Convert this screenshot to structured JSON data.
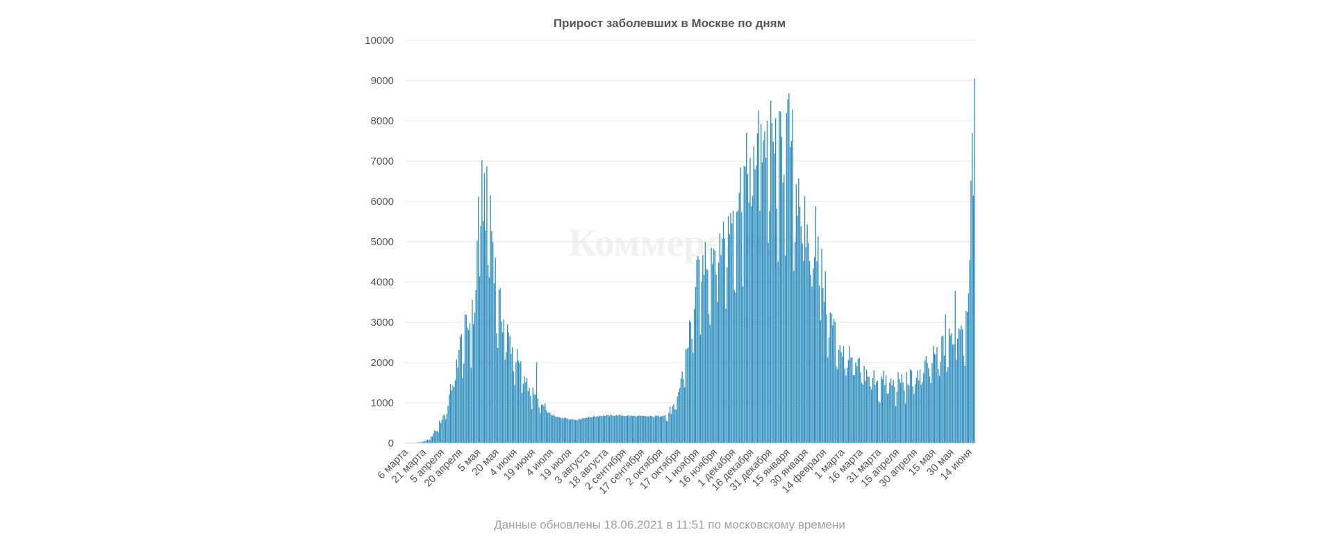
{
  "chart_data": {
    "type": "bar",
    "title": "Прирост заболевших в Москве по дням",
    "watermark": "Коммерсантъ",
    "footer": "Данные обновлены 18.06.2021 в 11:51 по московскому времени",
    "ylim": [
      0,
      10000
    ],
    "yticks": [
      "0",
      "1000",
      "2000",
      "3000",
      "4000",
      "5000",
      "6000",
      "7000",
      "8000",
      "9000",
      "10000"
    ],
    "xtick_labels": [
      "6 марта",
      "21 марта",
      "5 апреля",
      "20 апреля",
      "5 мая",
      "20 мая",
      "4 июня",
      "19 июня",
      "4 июля",
      "19 июля",
      "3 августа",
      "18 августа",
      "2 сентября",
      "17 сентября",
      "2 октября",
      "17 октября",
      "1 ноября",
      "16 ноября",
      "1 декабря",
      "16 декабря",
      "31 декабря",
      "15 января",
      "30 января",
      "14 февраля",
      "1 марта",
      "16 марта",
      "31 марта",
      "15 апреля",
      "30 апреля",
      "15 мая",
      "30 мая",
      "14 июня"
    ],
    "bar_color": "#2e8fbf",
    "grid": true,
    "days": 470,
    "series_keyframes": [
      [
        0,
        1
      ],
      [
        8,
        5
      ],
      [
        14,
        30
      ],
      [
        20,
        100
      ],
      [
        26,
        350
      ],
      [
        32,
        700
      ],
      [
        36,
        1100
      ],
      [
        40,
        1600
      ],
      [
        44,
        2200
      ],
      [
        48,
        2600
      ],
      [
        52,
        2800
      ],
      [
        56,
        3000
      ],
      [
        58,
        3500
      ],
      [
        60,
        5800
      ],
      [
        64,
        5900
      ],
      [
        67,
        5700
      ],
      [
        70,
        5400
      ],
      [
        72,
        4800
      ],
      [
        76,
        3400
      ],
      [
        80,
        3000
      ],
      [
        84,
        2600
      ],
      [
        88,
        2300
      ],
      [
        94,
        1800
      ],
      [
        100,
        1500
      ],
      [
        106,
        1100
      ],
      [
        112,
        900
      ],
      [
        118,
        750
      ],
      [
        124,
        650
      ],
      [
        132,
        620
      ],
      [
        140,
        580
      ],
      [
        150,
        640
      ],
      [
        160,
        680
      ],
      [
        175,
        690
      ],
      [
        190,
        670
      ],
      [
        205,
        660
      ],
      [
        215,
        700
      ],
      [
        220,
        800
      ],
      [
        224,
        1000
      ],
      [
        228,
        1700
      ],
      [
        232,
        2300
      ],
      [
        236,
        3000
      ],
      [
        240,
        3800
      ],
      [
        244,
        4300
      ],
      [
        248,
        4500
      ],
      [
        252,
        4600
      ],
      [
        256,
        4700
      ],
      [
        260,
        4900
      ],
      [
        264,
        5000
      ],
      [
        268,
        5400
      ],
      [
        272,
        5800
      ],
      [
        276,
        6000
      ],
      [
        280,
        6300
      ],
      [
        284,
        6600
      ],
      [
        288,
        6900
      ],
      [
        292,
        7100
      ],
      [
        296,
        7300
      ],
      [
        300,
        7200
      ],
      [
        304,
        7000
      ],
      [
        308,
        6900
      ],
      [
        312,
        7000
      ],
      [
        316,
        7300
      ],
      [
        318,
        7400
      ],
      [
        320,
        6500
      ],
      [
        324,
        6000
      ],
      [
        328,
        5200
      ],
      [
        332,
        4800
      ],
      [
        336,
        4700
      ],
      [
        338,
        5200
      ],
      [
        340,
        4600
      ],
      [
        344,
        3900
      ],
      [
        348,
        3200
      ],
      [
        352,
        2800
      ],
      [
        356,
        2500
      ],
      [
        360,
        2200
      ],
      [
        366,
        2000
      ],
      [
        372,
        1800
      ],
      [
        378,
        1700
      ],
      [
        384,
        1600
      ],
      [
        390,
        1500
      ],
      [
        396,
        1500
      ],
      [
        402,
        1400
      ],
      [
        408,
        1500
      ],
      [
        414,
        1500
      ],
      [
        420,
        1600
      ],
      [
        426,
        1700
      ],
      [
        432,
        1900
      ],
      [
        438,
        2100
      ],
      [
        444,
        2300
      ],
      [
        450,
        2500
      ],
      [
        454,
        2700
      ],
      [
        458,
        2900
      ],
      [
        462,
        3000
      ],
      [
        464,
        4000
      ],
      [
        466,
        5800
      ],
      [
        468,
        6700
      ],
      [
        469,
        9056
      ]
    ],
    "series_peaks": [
      [
        55,
        3560
      ],
      [
        65,
        6700
      ],
      [
        70,
        6150
      ],
      [
        108,
        2000
      ],
      [
        279,
        6880
      ],
      [
        293,
        7920
      ],
      [
        298,
        8000
      ],
      [
        314,
        8200
      ],
      [
        318,
        7500
      ],
      [
        324,
        6570
      ],
      [
        338,
        5880
      ],
      [
        445,
        3200
      ],
      [
        453,
        3780
      ],
      [
        467,
        7700
      ],
      [
        469,
        9056
      ]
    ]
  }
}
